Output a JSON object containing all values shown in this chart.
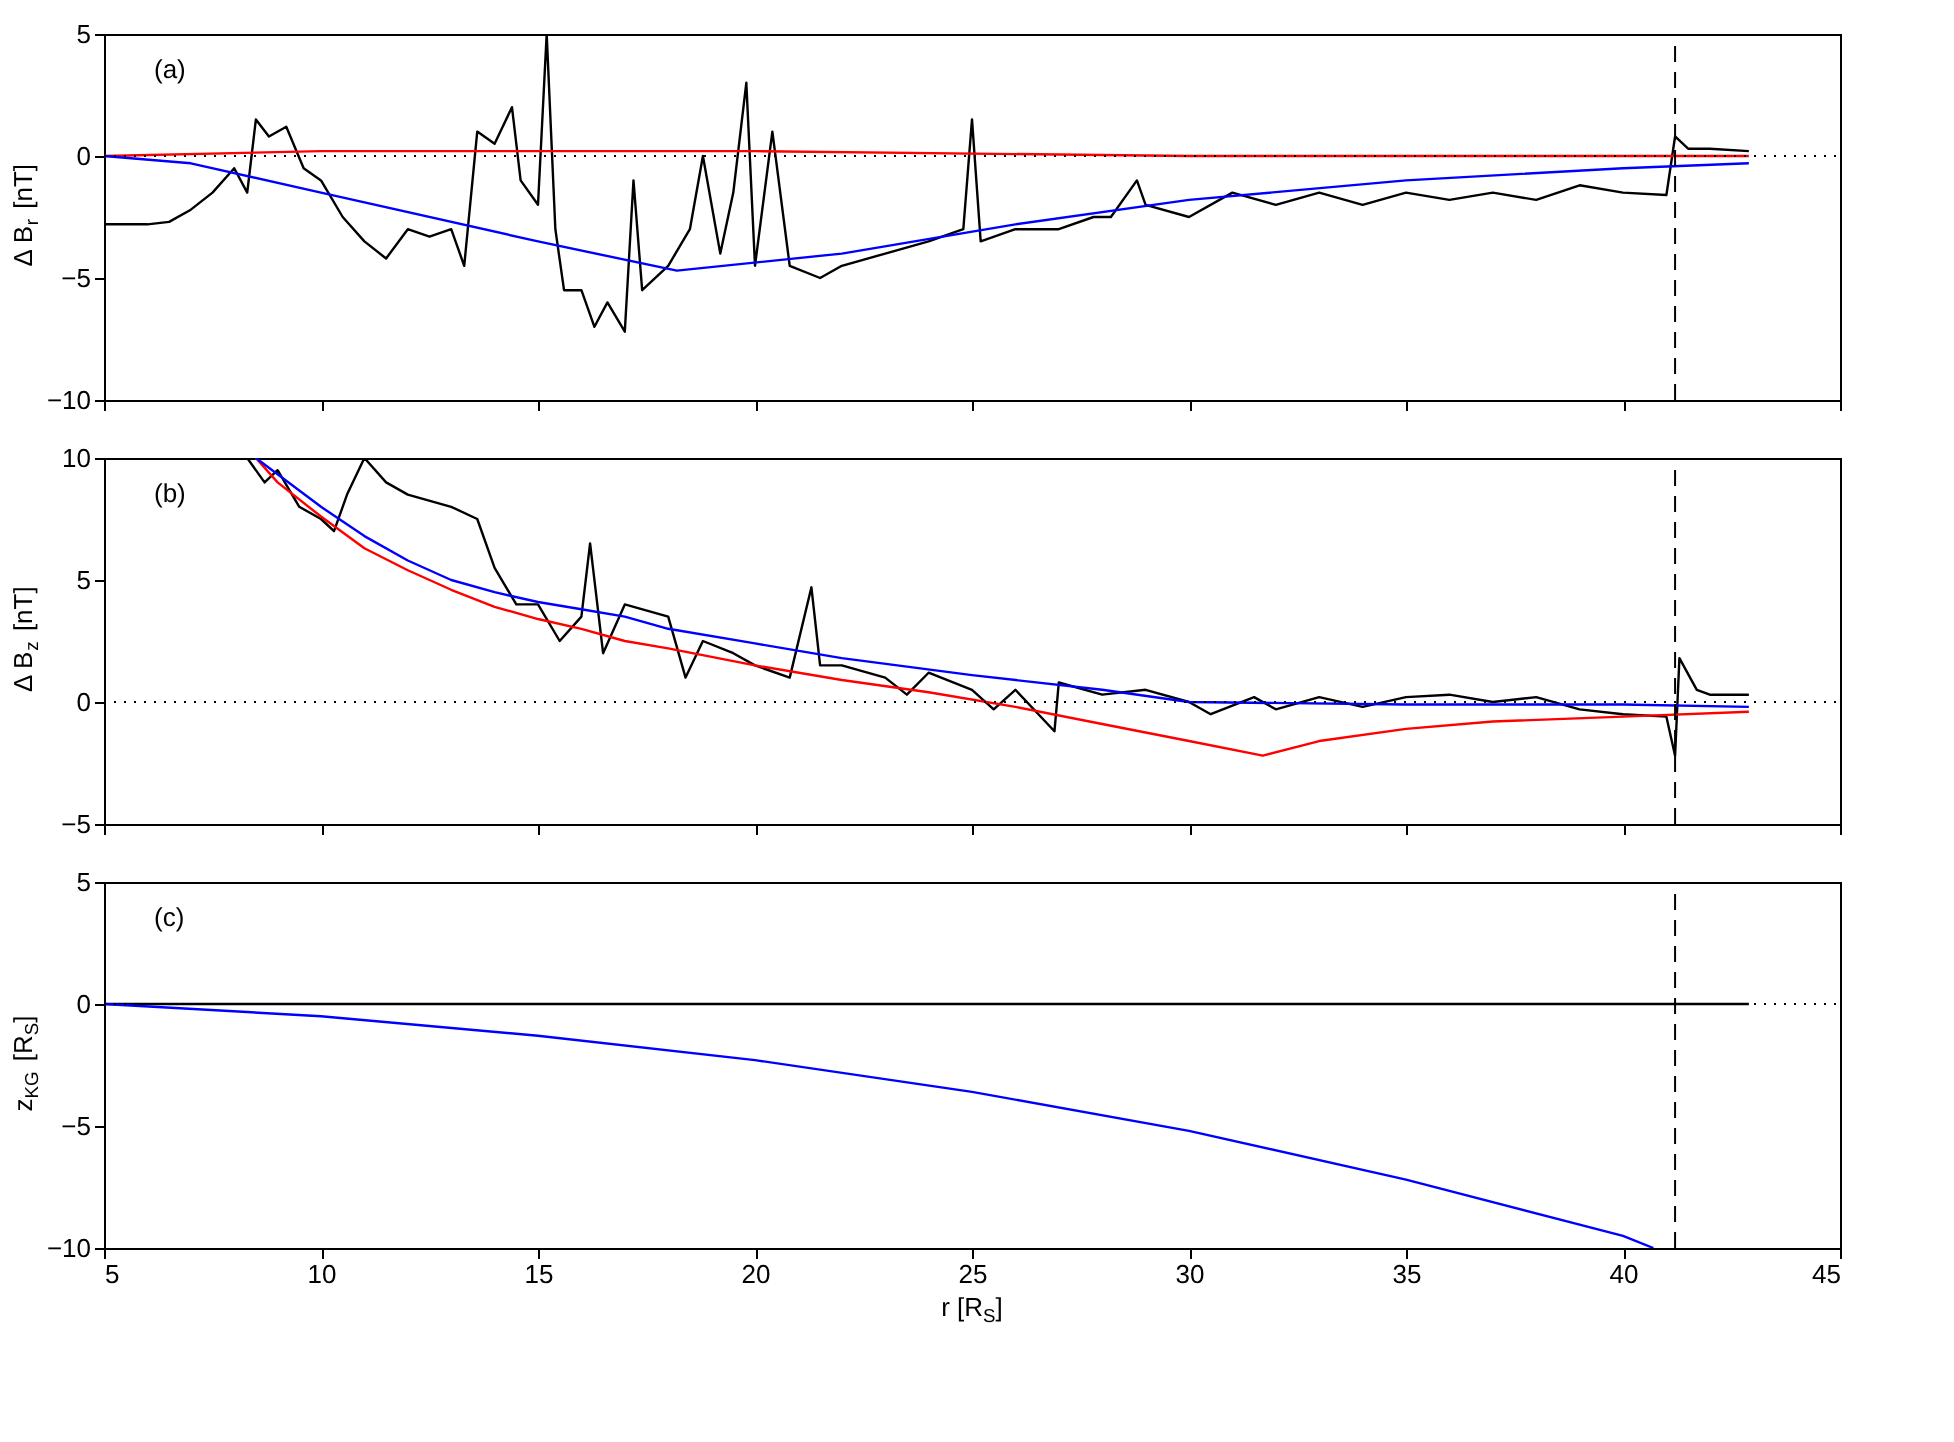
{
  "chart_data": [
    {
      "type": "line",
      "ylabel": "Δ B$_{r}$ [nT]",
      "annotations": [
        "(a)"
      ],
      "xlim": [
        5,
        45
      ],
      "xticks": [
        5,
        10,
        15,
        20,
        25,
        30,
        35,
        40,
        45
      ],
      "ylim": [
        -10,
        5
      ],
      "yticks": [
        -10,
        -5,
        0,
        5
      ],
      "tick_labels": "y",
      "grid": false,
      "line_style": "solid",
      "marker": "none",
      "ref_lines": [
        {
          "axis": "y",
          "value": 0,
          "color": "#000000",
          "line_style": "dotted"
        },
        {
          "axis": "x",
          "value": 41.2,
          "color": "#000000",
          "line_style": "dashed"
        }
      ],
      "series": [
        {
          "color": "#000000",
          "x": [
            5,
            6,
            6.5,
            7,
            7.5,
            8,
            8.3,
            8.5,
            8.8,
            9.2,
            9.6,
            10,
            10.5,
            11,
            11.5,
            12,
            12.5,
            13,
            13.3,
            13.6,
            14,
            14.4,
            14.6,
            15,
            15.2,
            15.4,
            15.6,
            16,
            16.3,
            16.6,
            17,
            17.2,
            17.4,
            18,
            18.5,
            18.8,
            19.2,
            19.5,
            19.8,
            20,
            20.4,
            20.8,
            21.5,
            22,
            23,
            24,
            24.8,
            25,
            25.2,
            26,
            27,
            27.8,
            28.2,
            28.8,
            29,
            30,
            31,
            32,
            33,
            34,
            35,
            36,
            37,
            38,
            39,
            40,
            41,
            41.2,
            41.5,
            42,
            42.9
          ],
          "values": [
            -2.8,
            -2.8,
            -2.7,
            -2.2,
            -1.5,
            -0.5,
            -1.5,
            1.5,
            0.8,
            1.2,
            -0.5,
            -1.0,
            -2.5,
            -3.5,
            -4.2,
            -3.0,
            -3.3,
            -3.0,
            -4.5,
            1.0,
            0.5,
            2.0,
            -1.0,
            -2.0,
            5.0,
            -3.0,
            -5.5,
            -5.5,
            -7.0,
            -6.0,
            -7.2,
            -1.0,
            -5.5,
            -4.5,
            -3.0,
            0.0,
            -4.0,
            -1.5,
            3.0,
            -4.5,
            1.0,
            -4.5,
            -5.0,
            -4.5,
            -4.0,
            -3.5,
            -3.0,
            1.5,
            -3.5,
            -3.0,
            -3.0,
            -2.5,
            -2.5,
            -1.0,
            -2.0,
            -2.5,
            -1.5,
            -2.0,
            -1.5,
            -2.0,
            -1.5,
            -1.8,
            -1.5,
            -1.8,
            -1.2,
            -1.5,
            -1.6,
            0.8,
            0.3,
            0.3,
            0.2
          ]
        },
        {
          "color": "#ff0000",
          "x": [
            5,
            10,
            20,
            30,
            42.9
          ],
          "values": [
            0,
            0.2,
            0.2,
            0,
            0
          ]
        },
        {
          "color": "#0000ff",
          "x": [
            5,
            7,
            10,
            15,
            18.2,
            22,
            26,
            30,
            35,
            40,
            42.9
          ],
          "values": [
            0,
            -0.3,
            -1.5,
            -3.5,
            -4.7,
            -4.0,
            -2.8,
            -1.8,
            -1.0,
            -0.5,
            -0.3
          ]
        }
      ]
    },
    {
      "type": "line",
      "ylabel": "Δ B$_{z}$ [nT]",
      "annotations": [
        "(b)"
      ],
      "xlim": [
        5,
        45
      ],
      "xticks": [
        5,
        10,
        15,
        20,
        25,
        30,
        35,
        40,
        45
      ],
      "ylim": [
        -5,
        10
      ],
      "yticks": [
        -5,
        0,
        5,
        10
      ],
      "tick_labels": "y",
      "grid": false,
      "line_style": "solid",
      "marker": "none",
      "ref_lines": [
        {
          "axis": "y",
          "value": 0,
          "color": "#000000",
          "line_style": "dotted"
        },
        {
          "axis": "x",
          "value": 41.2,
          "color": "#000000",
          "line_style": "dashed"
        }
      ],
      "series": [
        {
          "color": "#000000",
          "x": [
            8.3,
            8.7,
            9,
            9.5,
            10,
            10.3,
            10.6,
            11,
            11.5,
            12,
            13,
            13.6,
            14,
            14.5,
            15,
            15.5,
            16,
            16.2,
            16.5,
            17,
            18,
            18.4,
            18.8,
            19.5,
            20,
            20.8,
            21.3,
            21.5,
            22,
            23,
            23.5,
            24,
            25,
            25.5,
            26,
            26.9,
            27,
            28,
            29,
            30,
            30.5,
            31.5,
            32,
            33,
            34,
            35,
            36,
            37,
            38,
            39,
            40,
            41,
            41.2,
            41.3,
            41.7,
            42,
            42.9
          ],
          "values": [
            10,
            9,
            9.5,
            8,
            7.5,
            7,
            8.5,
            10,
            9,
            8.5,
            8,
            7.5,
            5.5,
            4,
            4.0,
            2.5,
            3.5,
            6.5,
            2,
            4,
            3.5,
            1,
            2.5,
            2,
            1.5,
            1,
            4.7,
            1.5,
            1.5,
            1.0,
            0.3,
            1.2,
            0.5,
            -0.3,
            0.5,
            -1.2,
            0.8,
            0.3,
            0.5,
            0,
            -0.5,
            0.2,
            -0.3,
            0.2,
            -0.2,
            0.2,
            0.3,
            0,
            0.2,
            -0.3,
            -0.5,
            -0.6,
            -2.2,
            1.8,
            0.5,
            0.3,
            0.3
          ]
        },
        {
          "color": "#ff0000",
          "x": [
            8.5,
            9,
            10,
            11,
            12,
            13,
            14,
            15,
            16,
            17,
            18,
            20,
            22,
            24,
            26,
            28,
            30,
            31.7,
            33,
            35,
            37,
            40,
            42.9
          ],
          "values": [
            10,
            9,
            7.6,
            6.3,
            5.4,
            4.6,
            3.9,
            3.4,
            3.0,
            2.5,
            2.2,
            1.5,
            0.9,
            0.4,
            -0.2,
            -0.9,
            -1.6,
            -2.2,
            -1.6,
            -1.1,
            -0.8,
            -0.6,
            -0.4
          ]
        },
        {
          "color": "#0000ff",
          "x": [
            8.5,
            10,
            11,
            12,
            13,
            14,
            15,
            16,
            17,
            18,
            20,
            22,
            25,
            28,
            30,
            35,
            40,
            42.9
          ],
          "values": [
            10,
            8.0,
            6.8,
            5.8,
            5.0,
            4.5,
            4.1,
            3.8,
            3.5,
            3.0,
            2.4,
            1.8,
            1.1,
            0.5,
            0.0,
            -0.1,
            -0.1,
            -0.2
          ]
        }
      ]
    },
    {
      "type": "line",
      "xlabel": "r [R$_{S}$]",
      "ylabel": "z$_{KG}$ [R$_{S}$]",
      "annotations": [
        "(c)"
      ],
      "xlim": [
        5,
        45
      ],
      "xticks": [
        5,
        10,
        15,
        20,
        25,
        30,
        35,
        40,
        45
      ],
      "ylim": [
        -10,
        5
      ],
      "yticks": [
        -10,
        -5,
        0,
        5
      ],
      "grid": false,
      "line_style": "solid",
      "marker": "none",
      "ref_lines": [
        {
          "axis": "y",
          "value": 0,
          "color": "#000000",
          "line_style": "dotted"
        },
        {
          "axis": "x",
          "value": 41.2,
          "color": "#000000",
          "line_style": "dashed"
        }
      ],
      "series": [
        {
          "color": "#000000",
          "x": [
            5,
            42.9
          ],
          "values": [
            0,
            0
          ]
        },
        {
          "color": "#0000ff",
          "x": [
            5,
            10,
            15,
            20,
            25,
            30,
            35,
            40,
            40.7
          ],
          "values": [
            0,
            -0.5,
            -1.3,
            -2.3,
            -3.6,
            -5.2,
            -7.2,
            -9.5,
            -10
          ]
        }
      ]
    }
  ]
}
